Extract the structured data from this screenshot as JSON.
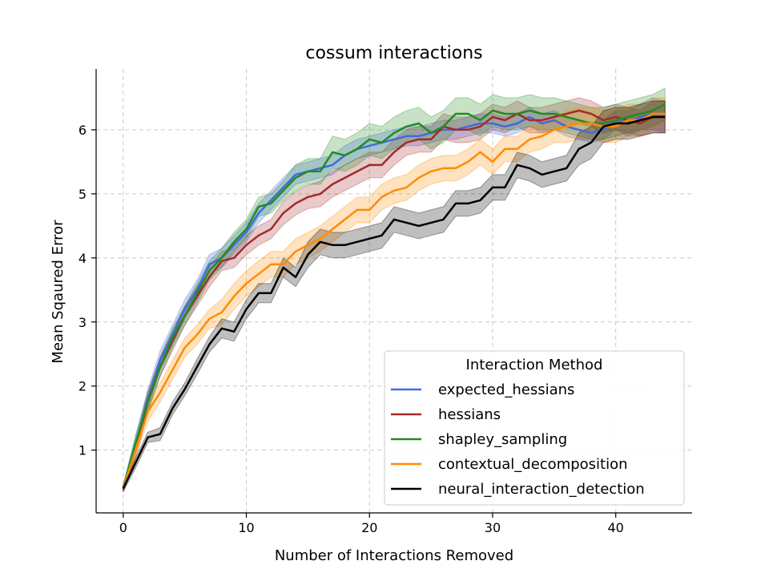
{
  "chart_data": {
    "type": "line",
    "title": "cossum interactions",
    "xlabel": "Number of Interactions Removed",
    "ylabel": "Mean Sqaured Error",
    "xlim": [
      -2.2,
      46.2
    ],
    "ylim": [
      0.02,
      6.95
    ],
    "xticks": [
      0,
      10,
      20,
      30,
      40
    ],
    "yticks": [
      1,
      2,
      3,
      4,
      5,
      6
    ],
    "grid": true,
    "legend": {
      "title": "Interaction Method",
      "placement": "lower-right"
    },
    "x": [
      0,
      1,
      2,
      3,
      4,
      5,
      6,
      7,
      8,
      9,
      10,
      11,
      12,
      13,
      14,
      15,
      16,
      17,
      18,
      19,
      20,
      21,
      22,
      23,
      24,
      25,
      26,
      27,
      28,
      29,
      30,
      31,
      32,
      33,
      34,
      35,
      36,
      37,
      38,
      39,
      40,
      41,
      42,
      43,
      44
    ],
    "series": [
      {
        "name": "expected_hessians",
        "color": "#4169e1",
        "values": [
          0.4,
          1.1,
          1.8,
          2.4,
          2.8,
          3.2,
          3.5,
          3.9,
          4.0,
          4.2,
          4.4,
          4.7,
          4.9,
          5.1,
          5.3,
          5.35,
          5.4,
          5.45,
          5.6,
          5.7,
          5.75,
          5.8,
          5.85,
          5.9,
          5.9,
          5.95,
          6.0,
          6.0,
          6.05,
          6.1,
          6.1,
          6.05,
          6.1,
          6.2,
          6.1,
          6.15,
          6.05,
          6.0,
          5.95,
          6.0,
          6.15,
          6.1,
          6.2,
          6.25,
          6.2
        ],
        "spread": [
          0.05,
          0.12,
          0.15,
          0.15,
          0.15,
          0.15,
          0.15,
          0.15,
          0.15,
          0.15,
          0.15,
          0.15,
          0.15,
          0.15,
          0.15,
          0.15,
          0.15,
          0.15,
          0.15,
          0.15,
          0.15,
          0.15,
          0.15,
          0.15,
          0.15,
          0.15,
          0.15,
          0.15,
          0.15,
          0.15,
          0.15,
          0.15,
          0.15,
          0.15,
          0.15,
          0.15,
          0.15,
          0.15,
          0.15,
          0.15,
          0.15,
          0.2,
          0.2,
          0.25,
          0.25
        ]
      },
      {
        "name": "hessians",
        "color": "#a52a2a",
        "values": [
          0.4,
          1.0,
          1.75,
          2.3,
          2.7,
          3.1,
          3.4,
          3.7,
          3.95,
          4.0,
          4.2,
          4.35,
          4.45,
          4.7,
          4.85,
          4.95,
          5.0,
          5.15,
          5.25,
          5.35,
          5.45,
          5.45,
          5.65,
          5.8,
          5.85,
          5.85,
          6.05,
          6.0,
          6.0,
          6.05,
          6.2,
          6.15,
          6.25,
          6.15,
          6.15,
          6.2,
          6.25,
          6.3,
          6.25,
          6.15,
          6.2,
          6.15,
          6.1,
          6.2,
          6.2
        ],
        "spread": [
          0.05,
          0.12,
          0.15,
          0.15,
          0.15,
          0.15,
          0.15,
          0.15,
          0.15,
          0.15,
          0.15,
          0.15,
          0.15,
          0.18,
          0.18,
          0.18,
          0.2,
          0.2,
          0.2,
          0.2,
          0.2,
          0.2,
          0.2,
          0.2,
          0.2,
          0.2,
          0.2,
          0.2,
          0.2,
          0.2,
          0.2,
          0.2,
          0.2,
          0.2,
          0.2,
          0.2,
          0.2,
          0.2,
          0.2,
          0.2,
          0.2,
          0.2,
          0.2,
          0.25,
          0.25
        ]
      },
      {
        "name": "shapley_sampling",
        "color": "#228b22",
        "values": [
          0.4,
          1.1,
          1.75,
          2.3,
          2.75,
          3.1,
          3.45,
          3.8,
          4.0,
          4.25,
          4.45,
          4.8,
          4.85,
          5.05,
          5.25,
          5.35,
          5.35,
          5.65,
          5.6,
          5.7,
          5.85,
          5.8,
          5.95,
          6.05,
          6.1,
          5.95,
          6.05,
          6.25,
          6.25,
          6.15,
          6.3,
          6.25,
          6.25,
          6.3,
          6.25,
          6.25,
          6.2,
          6.15,
          6.1,
          6.1,
          6.15,
          6.2,
          6.25,
          6.3,
          6.4
        ],
        "spread": [
          0.05,
          0.12,
          0.15,
          0.15,
          0.15,
          0.15,
          0.15,
          0.15,
          0.15,
          0.15,
          0.15,
          0.15,
          0.15,
          0.15,
          0.2,
          0.2,
          0.2,
          0.25,
          0.25,
          0.25,
          0.25,
          0.25,
          0.25,
          0.25,
          0.25,
          0.25,
          0.25,
          0.25,
          0.25,
          0.25,
          0.25,
          0.25,
          0.25,
          0.25,
          0.25,
          0.25,
          0.25,
          0.25,
          0.25,
          0.25,
          0.25,
          0.25,
          0.25,
          0.25,
          0.25
        ]
      },
      {
        "name": "contextual_decomposition",
        "color": "#ff8c00",
        "values": [
          0.4,
          1.0,
          1.6,
          1.9,
          2.25,
          2.6,
          2.8,
          3.05,
          3.15,
          3.4,
          3.6,
          3.75,
          3.9,
          3.9,
          4.1,
          4.2,
          4.3,
          4.45,
          4.6,
          4.75,
          4.75,
          4.95,
          5.05,
          5.1,
          5.25,
          5.35,
          5.4,
          5.4,
          5.5,
          5.65,
          5.5,
          5.7,
          5.7,
          5.85,
          5.9,
          6.0,
          6.05,
          6.1,
          6.1,
          6.05,
          6.05,
          6.15,
          6.15,
          6.25,
          6.25
        ],
        "spread": [
          0.05,
          0.1,
          0.15,
          0.15,
          0.15,
          0.15,
          0.15,
          0.15,
          0.2,
          0.2,
          0.2,
          0.2,
          0.2,
          0.2,
          0.2,
          0.2,
          0.2,
          0.2,
          0.2,
          0.2,
          0.2,
          0.2,
          0.2,
          0.2,
          0.2,
          0.2,
          0.2,
          0.2,
          0.2,
          0.2,
          0.2,
          0.2,
          0.2,
          0.2,
          0.2,
          0.2,
          0.25,
          0.25,
          0.25,
          0.25,
          0.25,
          0.25,
          0.25,
          0.25,
          0.25
        ]
      },
      {
        "name": "neural_interaction_detection",
        "color": "#000000",
        "values": [
          0.4,
          0.8,
          1.2,
          1.25,
          1.65,
          1.95,
          2.3,
          2.65,
          2.9,
          2.85,
          3.2,
          3.45,
          3.45,
          3.85,
          3.7,
          4.05,
          4.25,
          4.2,
          4.2,
          4.25,
          4.3,
          4.35,
          4.6,
          4.55,
          4.5,
          4.55,
          4.6,
          4.85,
          4.85,
          4.9,
          5.1,
          5.1,
          5.45,
          5.4,
          5.3,
          5.35,
          5.4,
          5.7,
          5.8,
          6.05,
          6.1,
          6.1,
          6.15,
          6.2,
          6.2
        ],
        "spread": [
          0.05,
          0.08,
          0.08,
          0.1,
          0.1,
          0.1,
          0.12,
          0.12,
          0.15,
          0.15,
          0.15,
          0.15,
          0.15,
          0.15,
          0.15,
          0.2,
          0.2,
          0.2,
          0.2,
          0.2,
          0.2,
          0.2,
          0.2,
          0.2,
          0.2,
          0.2,
          0.2,
          0.2,
          0.2,
          0.2,
          0.2,
          0.2,
          0.2,
          0.2,
          0.2,
          0.2,
          0.2,
          0.25,
          0.25,
          0.25,
          0.25,
          0.25,
          0.25,
          0.25,
          0.25
        ]
      }
    ]
  }
}
